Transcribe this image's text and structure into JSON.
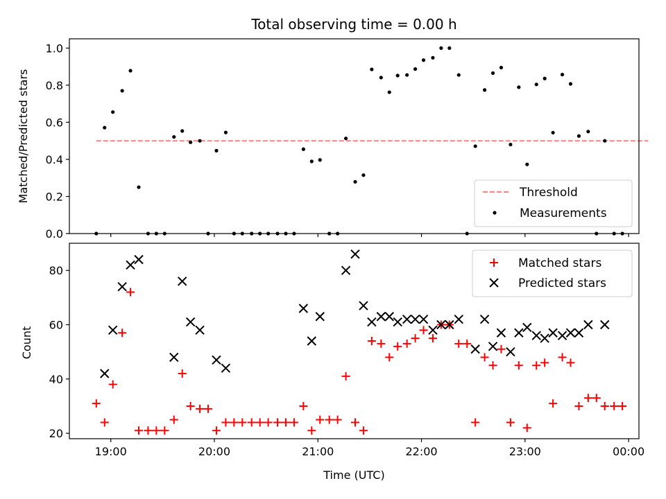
{
  "chart_data": [
    {
      "type": "scatter",
      "title": "Total observing time = 0.00 h",
      "xlabel": "",
      "ylabel": "Matched/Predicted stars",
      "xlim": [
        -0.4,
        5.1
      ],
      "ylim": [
        0,
        1.05
      ],
      "xticks": [
        0,
        1,
        2,
        3,
        4,
        5
      ],
      "yticks": [
        0,
        0.2,
        0.4,
        0.6,
        0.8,
        1.0
      ],
      "ytick_labels": [
        "0.0",
        "0.2",
        "0.4",
        "0.6",
        "0.8",
        "1.0"
      ],
      "grid": false,
      "legend": {
        "position": "lower-right",
        "entries": [
          "Threshold",
          "Measurements"
        ]
      },
      "series": [
        {
          "name": "Threshold",
          "kind": "line",
          "color": "#ff8080",
          "dash": true,
          "points": [
            [
              -0.14,
              0.5
            ],
            [
              5.19,
              0.5
            ]
          ]
        },
        {
          "name": "Measurements",
          "kind": "dot",
          "color": "#000000",
          "points": [
            [
              -0.14,
              0.0
            ],
            [
              -0.06,
              0.571
            ],
            [
              0.02,
              0.655
            ],
            [
              0.11,
              0.77
            ],
            [
              0.19,
              0.878
            ],
            [
              0.27,
              0.25
            ],
            [
              0.36,
              0.0
            ],
            [
              0.44,
              0.0
            ],
            [
              0.52,
              0.0
            ],
            [
              0.61,
              0.521
            ],
            [
              0.69,
              0.553
            ],
            [
              0.77,
              0.492
            ],
            [
              0.86,
              0.5
            ],
            [
              0.94,
              0.0
            ],
            [
              1.02,
              0.447
            ],
            [
              1.11,
              0.545
            ],
            [
              1.19,
              0.0
            ],
            [
              1.27,
              0.0
            ],
            [
              1.36,
              0.0
            ],
            [
              1.44,
              0.0
            ],
            [
              1.52,
              0.0
            ],
            [
              1.61,
              0.0
            ],
            [
              1.69,
              0.0
            ],
            [
              1.77,
              0.0
            ],
            [
              1.86,
              0.455
            ],
            [
              1.94,
              0.389
            ],
            [
              2.02,
              0.397
            ],
            [
              2.11,
              0.0
            ],
            [
              2.19,
              0.0
            ],
            [
              2.27,
              0.513
            ],
            [
              2.36,
              0.279
            ],
            [
              2.44,
              0.315
            ],
            [
              2.52,
              0.885
            ],
            [
              2.61,
              0.841
            ],
            [
              2.69,
              0.762
            ],
            [
              2.77,
              0.852
            ],
            [
              2.86,
              0.855
            ],
            [
              2.94,
              0.887
            ],
            [
              3.02,
              0.935
            ],
            [
              3.11,
              0.948
            ],
            [
              3.19,
              1.0
            ],
            [
              3.27,
              1.0
            ],
            [
              3.36,
              0.855
            ],
            [
              3.44,
              0.0
            ],
            [
              3.52,
              0.471
            ],
            [
              3.61,
              0.774
            ],
            [
              3.69,
              0.865
            ],
            [
              3.77,
              0.895
            ],
            [
              3.86,
              0.48
            ],
            [
              3.94,
              0.789
            ],
            [
              4.02,
              0.373
            ],
            [
              4.11,
              0.804
            ],
            [
              4.19,
              0.836
            ],
            [
              4.27,
              0.544
            ],
            [
              4.36,
              0.857
            ],
            [
              4.44,
              0.807
            ],
            [
              4.52,
              0.526
            ],
            [
              4.61,
              0.55
            ],
            [
              4.69,
              0.0
            ],
            [
              4.77,
              0.5
            ],
            [
              4.86,
              0.0
            ],
            [
              4.94,
              0.0
            ]
          ]
        }
      ]
    },
    {
      "type": "scatter",
      "title": "",
      "xlabel": "Time (UTC)",
      "ylabel": "Count",
      "xlim": [
        -0.4,
        5.1
      ],
      "ylim": [
        18,
        90
      ],
      "xticks": [
        0,
        1,
        2,
        3,
        4,
        5
      ],
      "xtick_labels": [
        "19:00",
        "20:00",
        "21:00",
        "22:00",
        "23:00",
        "00:00"
      ],
      "yticks": [
        20,
        40,
        60,
        80
      ],
      "ytick_labels": [
        "20",
        "40",
        "60",
        "80"
      ],
      "grid": false,
      "legend": {
        "position": "upper-right",
        "entries": [
          "Matched stars",
          "Predicted stars"
        ]
      },
      "series": [
        {
          "name": "Matched stars",
          "kind": "plus",
          "color": "#ff0000",
          "points": [
            [
              -0.14,
              31
            ],
            [
              -0.06,
              24
            ],
            [
              0.02,
              38
            ],
            [
              0.11,
              57
            ],
            [
              0.19,
              72
            ],
            [
              0.27,
              21
            ],
            [
              0.36,
              21
            ],
            [
              0.44,
              21
            ],
            [
              0.52,
              21
            ],
            [
              0.61,
              25
            ],
            [
              0.69,
              42
            ],
            [
              0.77,
              30
            ],
            [
              0.86,
              29
            ],
            [
              0.94,
              29
            ],
            [
              1.02,
              21
            ],
            [
              1.11,
              24
            ],
            [
              1.19,
              24
            ],
            [
              1.27,
              24
            ],
            [
              1.36,
              24
            ],
            [
              1.44,
              24
            ],
            [
              1.52,
              24
            ],
            [
              1.61,
              24
            ],
            [
              1.69,
              24
            ],
            [
              1.77,
              24
            ],
            [
              1.86,
              30
            ],
            [
              1.94,
              21
            ],
            [
              2.02,
              25
            ],
            [
              2.11,
              25
            ],
            [
              2.19,
              25
            ],
            [
              2.27,
              41
            ],
            [
              2.36,
              24
            ],
            [
              2.44,
              21
            ],
            [
              2.52,
              54
            ],
            [
              2.61,
              53
            ],
            [
              2.69,
              48
            ],
            [
              2.77,
              52
            ],
            [
              2.86,
              53
            ],
            [
              2.94,
              55
            ],
            [
              3.02,
              58
            ],
            [
              3.11,
              55
            ],
            [
              3.19,
              60
            ],
            [
              3.27,
              60
            ],
            [
              3.36,
              53
            ],
            [
              3.44,
              53
            ],
            [
              3.52,
              24
            ],
            [
              3.61,
              48
            ],
            [
              3.69,
              45
            ],
            [
              3.77,
              51
            ],
            [
              3.86,
              24
            ],
            [
              3.94,
              45
            ],
            [
              4.02,
              22
            ],
            [
              4.11,
              45
            ],
            [
              4.19,
              46
            ],
            [
              4.27,
              31
            ],
            [
              4.36,
              48
            ],
            [
              4.44,
              46
            ],
            [
              4.52,
              30
            ],
            [
              4.61,
              33
            ],
            [
              4.69,
              33
            ],
            [
              4.77,
              30
            ],
            [
              4.86,
              30
            ],
            [
              4.94,
              30
            ]
          ]
        },
        {
          "name": "Predicted stars",
          "kind": "cross",
          "color": "#000000",
          "points": [
            [
              -0.06,
              42
            ],
            [
              0.02,
              58
            ],
            [
              0.11,
              74
            ],
            [
              0.19,
              82
            ],
            [
              0.27,
              84
            ],
            [
              0.61,
              48
            ],
            [
              0.69,
              76
            ],
            [
              0.77,
              61
            ],
            [
              0.86,
              58
            ],
            [
              1.02,
              47
            ],
            [
              1.11,
              44
            ],
            [
              1.86,
              66
            ],
            [
              1.94,
              54
            ],
            [
              2.02,
              63
            ],
            [
              2.27,
              80
            ],
            [
              2.36,
              86
            ],
            [
              2.44,
              67
            ],
            [
              2.52,
              61
            ],
            [
              2.61,
              63
            ],
            [
              2.69,
              63
            ],
            [
              2.77,
              61
            ],
            [
              2.86,
              62
            ],
            [
              2.94,
              62
            ],
            [
              3.02,
              62
            ],
            [
              3.11,
              58
            ],
            [
              3.19,
              60
            ],
            [
              3.27,
              60
            ],
            [
              3.36,
              62
            ],
            [
              3.52,
              51
            ],
            [
              3.61,
              62
            ],
            [
              3.69,
              52
            ],
            [
              3.77,
              57
            ],
            [
              3.86,
              50
            ],
            [
              3.94,
              57
            ],
            [
              4.02,
              59
            ],
            [
              4.11,
              56
            ],
            [
              4.19,
              55
            ],
            [
              4.27,
              57
            ],
            [
              4.36,
              56
            ],
            [
              4.44,
              57
            ],
            [
              4.52,
              57
            ],
            [
              4.61,
              60
            ],
            [
              4.77,
              60
            ]
          ]
        }
      ]
    }
  ]
}
